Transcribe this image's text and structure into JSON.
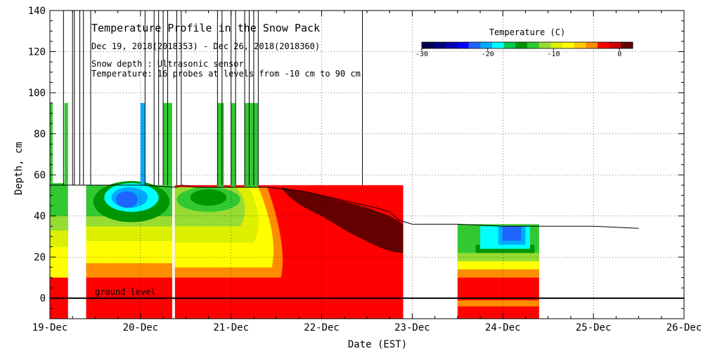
{
  "chart_data": {
    "type": "heatmap",
    "title": "Temperature Profile in the Snow Pack",
    "subtitle": "Dec 19, 2018(2018353) - Dec 26, 2018(2018360)",
    "notes": [
      "Snow depth : Ultrasonic sensor",
      "Temperature: 16 probes at levels from -10 cm to 90 cm"
    ],
    "xlabel": "Date (EST)",
    "ylabel": "Depth, cm",
    "xticks": [
      "19-Dec",
      "20-Dec",
      "21-Dec",
      "22-Dec",
      "23-Dec",
      "24-Dec",
      "25-Dec",
      "26-Dec"
    ],
    "xlim_days": [
      0,
      7
    ],
    "ylim": [
      -10,
      140
    ],
    "yticks": [
      0,
      20,
      40,
      60,
      80,
      100,
      120,
      140
    ],
    "ground_label": "ground level",
    "colorbar": {
      "title": "Temperature (C)",
      "range": [
        -30,
        2
      ],
      "tick_labels": [
        "-30",
        "-20",
        "-10",
        "0"
      ],
      "colors": [
        "#000050",
        "#00007a",
        "#0000b4",
        "#0000ff",
        "#1e64ff",
        "#00aaff",
        "#00ffff",
        "#00c850",
        "#009600",
        "#32c832",
        "#96dc32",
        "#dcf000",
        "#ffff00",
        "#ffc800",
        "#ff8c00",
        "#ff0000",
        "#c80000",
        "#640000"
      ]
    },
    "colors": {
      "warm_soil": "#ff0000",
      "orange": "#ff8c00",
      "yellow": "#ffff00",
      "yellowgreen": "#dcf000",
      "lightgreen": "#96dc32",
      "green": "#32c832",
      "darkgreen": "#009600",
      "cyan": "#00ffff",
      "skyblue": "#00aaff",
      "blue": "#1e64ff",
      "darkred": "#640000",
      "line": "#000000"
    },
    "snow_depth_cm": {
      "x_days": [
        0.0,
        0.15,
        0.2,
        0.4,
        0.55,
        0.9,
        1.0,
        1.4,
        1.45,
        1.6,
        2.0,
        2.2,
        2.4,
        2.6,
        2.8,
        3.0,
        3.2,
        3.4,
        3.6,
        3.75,
        3.85,
        4.0,
        4.5,
        5.0,
        5.5,
        6.0,
        6.5,
        7.0
      ],
      "y": [
        55,
        55,
        55,
        55,
        55,
        55,
        55,
        54,
        55,
        54,
        54,
        54,
        54,
        53,
        52,
        50,
        48,
        46,
        44,
        42,
        38,
        36,
        36,
        35,
        35,
        35,
        34,
        null
      ]
    },
    "data_gaps_days": [
      [
        0.2,
        0.4
      ],
      [
        1.35,
        1.38
      ],
      [
        3.9,
        4.5
      ],
      [
        5.4,
        7.0
      ]
    ],
    "spikes_days": [
      0.0,
      0.15,
      0.25,
      0.27,
      0.33,
      0.37,
      0.45,
      1.05,
      1.15,
      1.2,
      1.25,
      1.3,
      1.4,
      1.45,
      1.85,
      1.9,
      2.0,
      2.05,
      2.15,
      2.2,
      2.25,
      2.3,
      3.45
    ]
  }
}
